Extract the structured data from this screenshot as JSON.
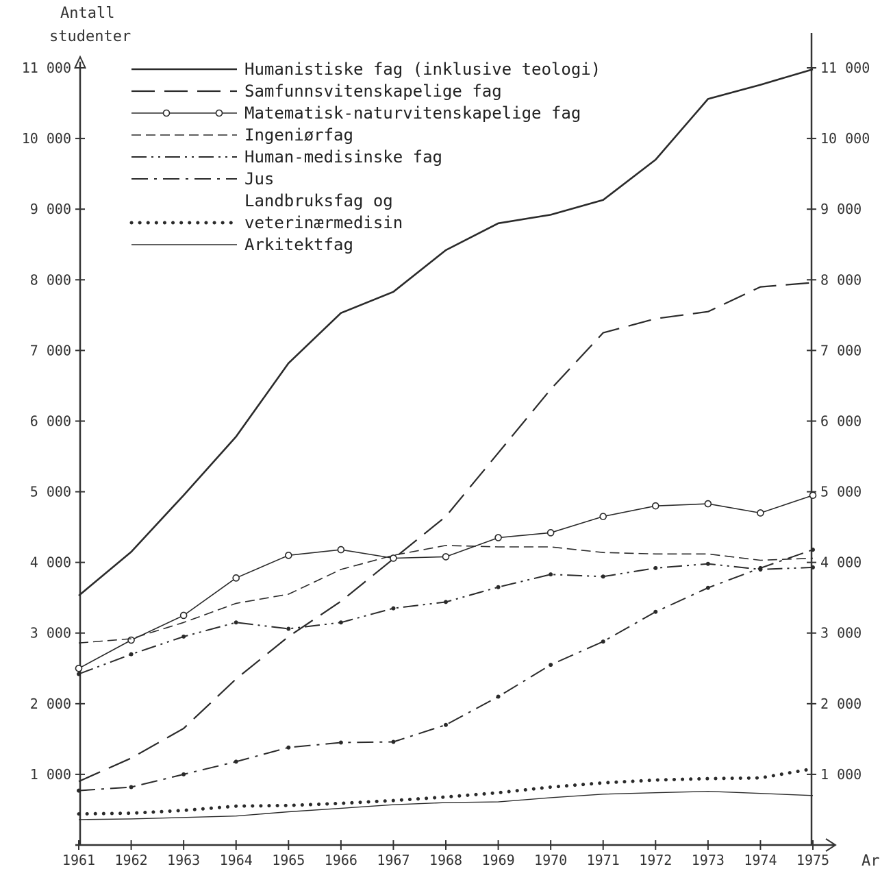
{
  "chart_data": {
    "type": "line",
    "ylabel_line1": "Antall",
    "ylabel_line2": "studenter",
    "xlabel": "Ar",
    "x": [
      1961,
      1962,
      1963,
      1964,
      1965,
      1966,
      1967,
      1968,
      1969,
      1970,
      1971,
      1972,
      1973,
      1974,
      1975
    ],
    "xlim": [
      1961,
      1975
    ],
    "ylim": [
      0,
      11000
    ],
    "y_ticks": [
      1000,
      2000,
      3000,
      4000,
      5000,
      6000,
      7000,
      8000,
      9000,
      10000,
      11000
    ],
    "y_tick_labels": [
      "1 000",
      "2 000",
      "3 000",
      "4 000",
      "5 000",
      "6 000",
      "7 000",
      "8 000",
      "9 000",
      "10 000",
      "11 000"
    ],
    "x_tick_labels": [
      "1961",
      "1962",
      "1963",
      "1964",
      "1965",
      "1966",
      "1967",
      "1968",
      "1969",
      "1970",
      "1971",
      "1972",
      "1973",
      "1974",
      "1975"
    ],
    "grid": false,
    "legend_position": "top-left",
    "series": [
      {
        "name": "Humanistiske fag (inklusive teologi)",
        "style": "solid-thick",
        "values": [
          3530,
          4150,
          4950,
          5780,
          6820,
          7530,
          7830,
          8420,
          8800,
          8920,
          9130,
          9700,
          10560,
          10760,
          10980
        ]
      },
      {
        "name": "Samfunnsvitenskapelige fag",
        "style": "long-dash",
        "values": [
          900,
          1230,
          1650,
          2350,
          2950,
          3450,
          4050,
          4650,
          5550,
          6450,
          7250,
          7450,
          7550,
          7900,
          7960
        ]
      },
      {
        "name": "Matematisk-naturvitenskapelige fag",
        "style": "dash-circle",
        "values": [
          2500,
          2900,
          3250,
          3780,
          4100,
          4180,
          4060,
          4080,
          4350,
          4420,
          4650,
          4800,
          4830,
          4700,
          4950
        ]
      },
      {
        "name": "Ingeniørfag",
        "style": "short-dash",
        "values": [
          2860,
          2920,
          3150,
          3420,
          3550,
          3900,
          4100,
          4240,
          4220,
          4220,
          4140,
          4120,
          4120,
          4030,
          4060
        ]
      },
      {
        "name": "Human-medisinske fag",
        "style": "dash-dot-dot",
        "values": [
          2420,
          2700,
          2950,
          3150,
          3060,
          3150,
          3350,
          3440,
          3650,
          3830,
          3800,
          3920,
          3980,
          3900,
          3930
        ]
      },
      {
        "name": "Jus",
        "style": "dash-dot",
        "values": [
          770,
          820,
          1000,
          1180,
          1380,
          1450,
          1460,
          1700,
          2100,
          2550,
          2880,
          3300,
          3640,
          3920,
          4180
        ]
      },
      {
        "name_line1": "Landbruksfag og",
        "name": "veterinærmedisin",
        "style": "dotted",
        "values": [
          440,
          450,
          490,
          550,
          560,
          590,
          630,
          680,
          740,
          820,
          880,
          920,
          940,
          950,
          1080
        ]
      },
      {
        "name": "Arkitektfag",
        "style": "solid-thin",
        "values": [
          360,
          370,
          390,
          410,
          470,
          520,
          570,
          600,
          610,
          670,
          720,
          740,
          760,
          730,
          700
        ]
      }
    ]
  }
}
